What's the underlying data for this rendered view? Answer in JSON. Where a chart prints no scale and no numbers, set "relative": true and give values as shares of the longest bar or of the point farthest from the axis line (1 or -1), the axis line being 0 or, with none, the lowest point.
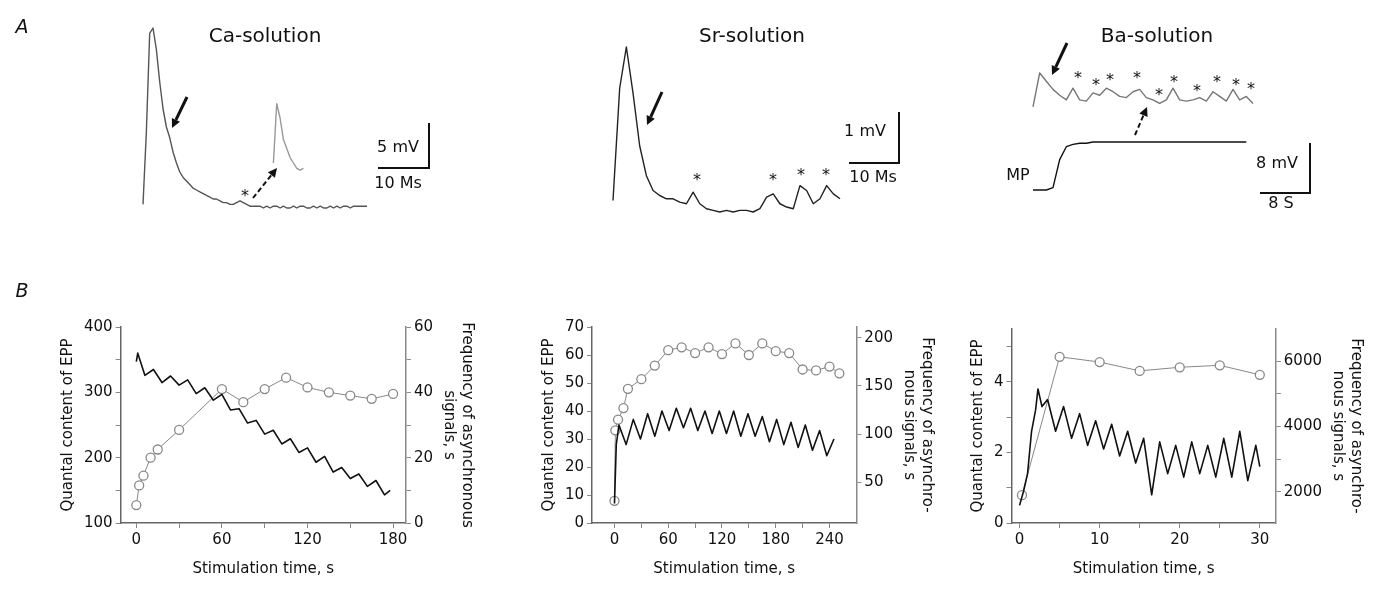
{
  "chart_data": [
    {
      "type": "line",
      "relative": true,
      "title": "Ca-solution",
      "annotations": [
        "A",
        "*",
        "5 mV",
        "10 Ms"
      ],
      "categories": [
        null,
        null,
        null,
        null,
        null,
        null,
        null,
        null,
        null,
        null,
        null,
        null,
        null,
        null,
        null,
        null,
        null,
        null,
        null,
        null,
        null,
        null,
        null,
        null,
        null,
        null,
        null,
        null,
        null,
        null,
        null,
        null,
        null,
        null,
        null,
        null,
        null,
        null,
        null,
        null,
        null,
        null,
        null,
        null,
        null,
        null,
        null,
        null,
        null,
        null,
        null,
        null,
        null,
        null,
        null,
        null,
        null,
        null,
        null,
        null,
        null,
        null,
        null,
        null,
        null,
        null,
        null,
        null
      ],
      "series": [
        {
          "color": "#555555",
          "values": [
            0.02,
            0.42,
            0.97,
            1.0,
            0.88,
            0.7,
            0.55,
            0.45,
            0.39,
            0.31,
            0.25,
            0.2,
            0.17,
            0.15,
            0.13,
            0.11,
            0.1,
            0.09,
            0.08,
            0.07,
            0.06,
            0.05,
            0.05,
            0.04,
            0.03,
            0.03,
            0.02,
            0.02,
            0.03,
            0.04,
            0.03,
            0.02,
            0.01,
            0.01,
            0.01,
            0.01,
            0.0,
            0.01,
            0.0,
            0.01,
            0.01,
            0.0,
            0.01,
            0.0,
            0.0,
            0.01,
            0.0,
            0.01,
            0.01,
            0.0,
            0.0,
            0.01,
            0.0,
            0.01,
            0.0,
            0.0,
            0.01,
            0.0,
            0.01,
            0.0,
            0.01,
            0.01,
            0.0,
            0.01,
            0.01,
            0.01,
            0.01,
            0.01
          ]
        },
        {
          "color": "#999999",
          "values": [
            null,
            null,
            null,
            null,
            null,
            null,
            null,
            null,
            null,
            null,
            null,
            null,
            null,
            null,
            null,
            null,
            null,
            null,
            null,
            null,
            null,
            null,
            null,
            null,
            null,
            null,
            null,
            null,
            null,
            null,
            null,
            null,
            null,
            null,
            null,
            null,
            null,
            null,
            null,
            0.25,
            0.58,
            0.5,
            0.38,
            0.33,
            0.28,
            0.25,
            0.22,
            0.21,
            0.22,
            null,
            null,
            null,
            null,
            null,
            null,
            null,
            null,
            null,
            null,
            null,
            null,
            null,
            null,
            null,
            null,
            null,
            null,
            null
          ]
        }
      ]
    },
    {
      "type": "line",
      "relative": true,
      "title": "Sr-solution",
      "annotations": [
        "*",
        "*",
        "*",
        "*",
        "1 mV",
        "10 Ms"
      ],
      "categories": [
        null,
        null,
        null,
        null,
        null,
        null,
        null,
        null,
        null,
        null,
        null,
        null,
        null,
        null,
        null,
        null,
        null,
        null,
        null,
        null,
        null,
        null,
        null,
        null,
        null,
        null,
        null,
        null,
        null,
        null,
        null,
        null,
        null,
        null,
        null
      ],
      "series": [
        {
          "color": "#222222",
          "values": [
            0.07,
            0.75,
            1.0,
            0.72,
            0.4,
            0.22,
            0.13,
            0.1,
            0.08,
            0.08,
            0.06,
            0.05,
            0.12,
            0.05,
            0.02,
            0.01,
            0.0,
            0.01,
            0.0,
            0.01,
            0.01,
            0.0,
            0.02,
            0.09,
            0.11,
            0.05,
            0.03,
            0.02,
            0.16,
            0.13,
            0.05,
            0.08,
            0.16,
            0.11,
            0.08
          ]
        }
      ]
    },
    {
      "type": "line",
      "relative": true,
      "title": "Ba-solution",
      "annotations": [
        "*",
        "*",
        "*",
        "*",
        "*",
        "*",
        "*",
        "*",
        "*",
        "*",
        "MP",
        "8 mV",
        "8 S"
      ],
      "categories": [
        null,
        null,
        null,
        null,
        null,
        null,
        null,
        null,
        null,
        null,
        null,
        null,
        null,
        null,
        null,
        null,
        null,
        null,
        null,
        null,
        null,
        null,
        null,
        null,
        null,
        null,
        null,
        null,
        null,
        null,
        null,
        null,
        null,
        null
      ],
      "series": [
        {
          "color": "#777777",
          "values": [
            0.71,
            1.0,
            0.93,
            0.86,
            0.81,
            0.77,
            0.87,
            0.77,
            0.76,
            0.83,
            0.81,
            0.87,
            0.84,
            0.8,
            0.79,
            0.84,
            0.86,
            0.79,
            0.77,
            0.74,
            0.77,
            0.87,
            0.77,
            0.76,
            0.77,
            0.79,
            0.76,
            0.84,
            0.8,
            0.76,
            0.86,
            0.77,
            0.8,
            0.74
          ]
        },
        {
          "color": "#111111",
          "values": [
            0,
            0,
            0,
            0.02,
            0.26,
            0.37,
            0.39,
            0.4,
            0.4,
            0.41,
            0.41,
            0.41,
            0.41,
            0.41,
            0.41,
            0.41,
            0.41,
            0.41,
            0.41,
            0.41,
            0.41,
            0.41,
            0.41,
            0.41,
            0.41,
            0.41,
            0.41,
            0.41,
            0.41,
            0.41,
            0.41,
            0.41,
            0.41,
            null
          ]
        }
      ]
    },
    {
      "type": "line",
      "annotations": [
        "B"
      ],
      "xlabel": "Stimulation time, s",
      "ylabel": "Quantal content of EPP",
      "y2label": "Frequency of asynchronous\nsignals, s",
      "xlim": [
        -11,
        189
      ],
      "xticks": [
        0,
        {
          "value": 30,
          "label": null
        },
        60,
        {
          "value": 90,
          "label": null
        },
        120,
        {
          "value": 150,
          "label": null
        },
        180
      ],
      "ylim": [
        100,
        400
      ],
      "yticks": [
        100,
        {
          "value": 150,
          "label": null
        },
        200,
        {
          "value": 250,
          "label": null
        },
        300,
        {
          "value": 350,
          "label": null
        },
        400
      ],
      "y2lim": [
        0,
        60
      ],
      "y2ticks": [
        0,
        {
          "value": 10,
          "label": null
        },
        20,
        {
          "value": 30,
          "label": null
        },
        40,
        {
          "value": 50,
          "label": null
        },
        60
      ],
      "series": [
        {
          "color": "#111111",
          "marker": "none",
          "x": [
            0,
            1,
            6,
            12,
            18,
            24,
            30,
            36,
            42,
            48,
            54,
            60,
            66,
            72,
            78,
            84,
            90,
            96,
            102,
            108,
            114,
            120,
            126,
            132,
            138,
            144,
            150,
            156,
            162,
            168,
            174,
            178
          ],
          "values": [
            347,
            360,
            326,
            335,
            315,
            325,
            311,
            319,
            298,
            307,
            288,
            297,
            273,
            275,
            253,
            257,
            236,
            242,
            221,
            229,
            208,
            215,
            193,
            202,
            178,
            185,
            168,
            175,
            156,
            165,
            143,
            150
          ]
        },
        {
          "color": "#888888",
          "marker": "circle",
          "axis": "y2",
          "x": [
            0,
            2,
            5,
            10,
            15,
            30,
            60,
            75,
            90,
            105,
            120,
            135,
            150,
            165,
            180
          ],
          "values": [
            5.5,
            11.5,
            14.5,
            20,
            22.5,
            28.5,
            41,
            37,
            41,
            44.5,
            41.5,
            40,
            39,
            38,
            39.5
          ]
        }
      ]
    },
    {
      "type": "line",
      "xlabel": "Stimulation time, s",
      "ylabel": "Quantal content of EPP",
      "y2label": "Frequency of asynchro-\nnous signals, s",
      "xlim": [
        -25,
        270
      ],
      "xticks": [
        0,
        {
          "value": 30,
          "label": null
        },
        60,
        {
          "value": 90,
          "label": null
        },
        120,
        {
          "value": 150,
          "label": null
        },
        180,
        {
          "value": 210,
          "label": null
        },
        240
      ],
      "ylim": [
        0,
        70
      ],
      "yticks": [
        0,
        10,
        20,
        30,
        40,
        50,
        60,
        70
      ],
      "y2lim": [
        8,
        211
      ],
      "y2ticks": [
        50,
        100,
        150,
        200
      ],
      "series": [
        {
          "color": "#111111",
          "marker": "none",
          "x": [
            0,
            2,
            5,
            13,
            21,
            29,
            37,
            45,
            53,
            61,
            69,
            77,
            85,
            93,
            101,
            109,
            117,
            125,
            133,
            141,
            149,
            157,
            165,
            173,
            181,
            189,
            197,
            205,
            213,
            221,
            229,
            237,
            245
          ],
          "values": [
            7,
            28,
            35,
            28,
            37,
            30,
            39,
            31,
            40,
            33,
            41,
            34,
            41,
            33,
            40,
            32,
            40,
            32,
            40,
            31,
            39,
            31,
            38,
            29,
            37,
            28,
            36,
            27,
            35,
            26,
            33,
            24,
            30
          ]
        },
        {
          "color": "#888888",
          "marker": "circle",
          "axis": "y2",
          "x": [
            0,
            1,
            4,
            10,
            15,
            30,
            45,
            60,
            75,
            90,
            105,
            120,
            135,
            150,
            165,
            180,
            195,
            210,
            225,
            240,
            251
          ],
          "values": [
            31,
            104,
            115,
            127,
            147,
            157,
            171,
            187,
            190,
            184,
            190,
            183,
            194,
            182,
            194,
            186,
            184,
            167,
            166,
            170,
            163
          ]
        }
      ]
    },
    {
      "type": "line",
      "xlabel": "Stimulation time, s",
      "ylabel": "Quantal content of EPP",
      "y2label": "Frequency of asynchro-\nnous signals, s",
      "xlim": [
        -1,
        32
      ],
      "xticks": [
        0,
        {
          "value": 5,
          "label": null
        },
        10,
        {
          "value": 15,
          "label": null
        },
        20,
        {
          "value": 25,
          "label": null
        },
        30
      ],
      "ylim": [
        0,
        5.5
      ],
      "yticks": [
        0,
        {
          "value": 1,
          "label": null
        },
        2,
        {
          "value": 3,
          "label": null
        },
        4,
        {
          "value": 5,
          "label": null
        }
      ],
      "y2lim": [
        1050,
        6980
      ],
      "y2ticks": [
        2000,
        {
          "value": 3000,
          "label": null
        },
        4000,
        {
          "value": 5000,
          "label": null
        },
        6000
      ],
      "series": [
        {
          "color": "#111111",
          "marker": "none",
          "x": [
            0,
            0.5,
            1,
            1.5,
            2,
            2.3,
            2.8,
            3.5,
            4.5,
            5.5,
            6.5,
            7.5,
            8.5,
            9.5,
            10.5,
            11.5,
            12.5,
            13.5,
            14.5,
            15.5,
            16.5,
            17.5,
            18.5,
            19.5,
            20.5,
            21.5,
            22.5,
            23.5,
            24.5,
            25.5,
            26.5,
            27.5,
            28.5,
            29.5,
            30
          ],
          "values": [
            0.5,
            0.9,
            1.4,
            2.6,
            3.2,
            3.8,
            3.3,
            3.5,
            2.6,
            3.3,
            2.4,
            3.1,
            2.2,
            2.9,
            2.1,
            2.8,
            1.9,
            2.6,
            1.7,
            2.4,
            0.8,
            2.3,
            1.4,
            2.2,
            1.3,
            2.3,
            1.4,
            2.2,
            1.3,
            2.4,
            1.3,
            2.6,
            1.2,
            2.2,
            1.6
          ]
        },
        {
          "color": "#888888",
          "marker": "circle",
          "axis": "y2",
          "x": [
            0.3,
            5,
            10,
            15,
            20,
            25,
            30
          ],
          "values": [
            1900,
            6130,
            5970,
            5700,
            5810,
            5870,
            5580
          ]
        }
      ]
    }
  ]
}
